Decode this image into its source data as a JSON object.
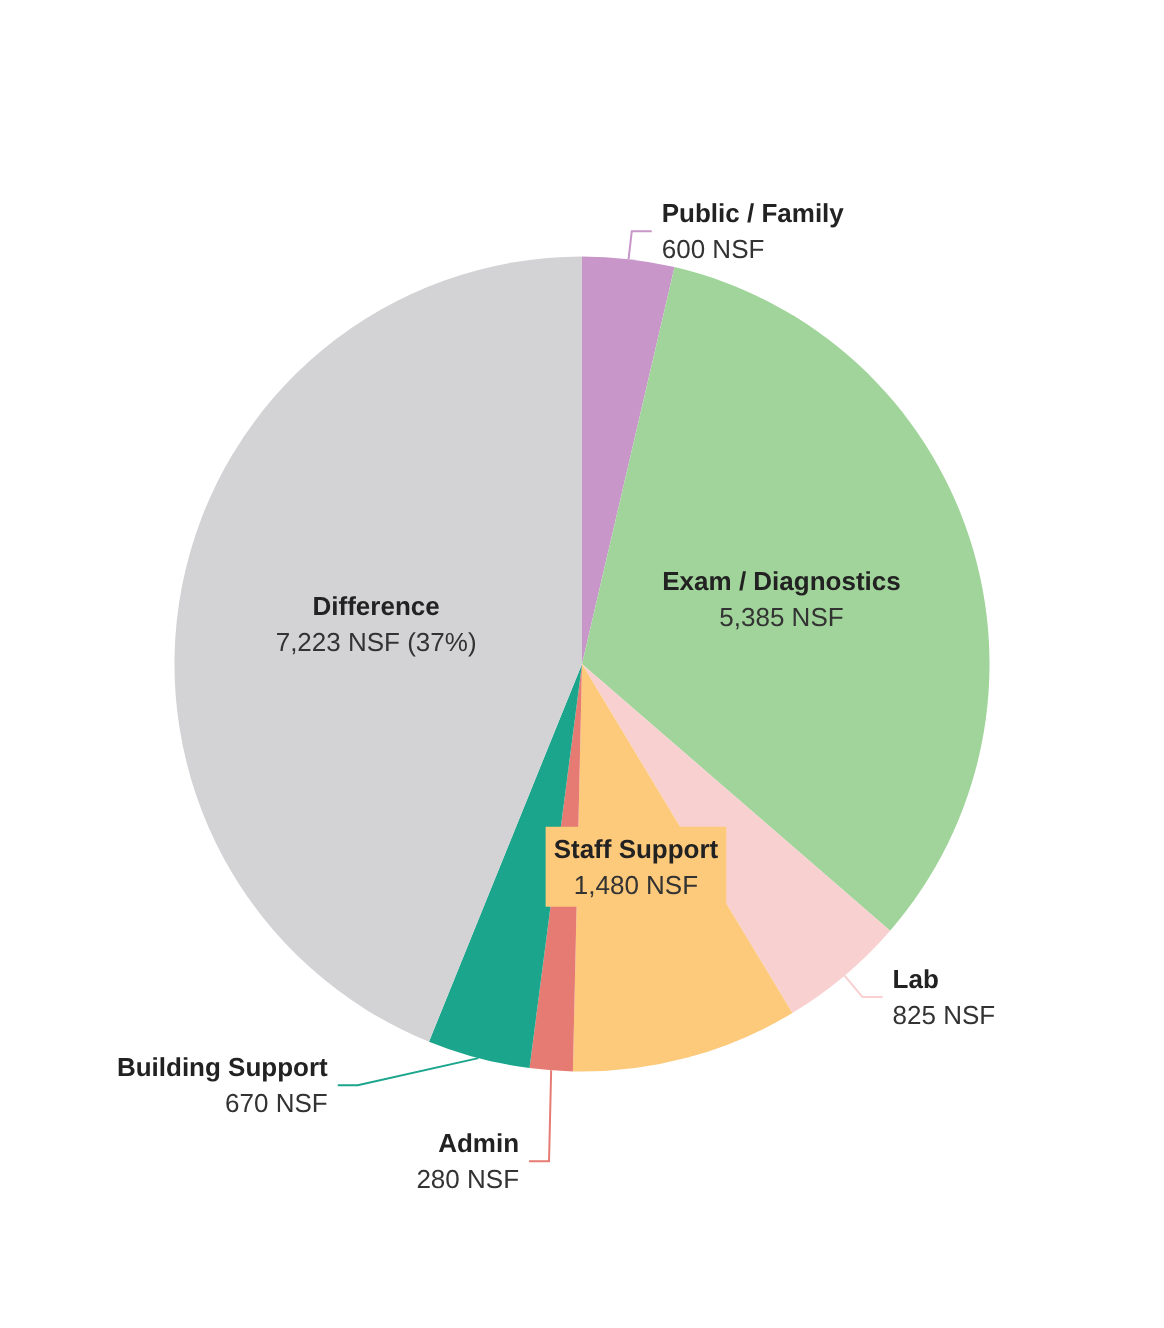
{
  "chart_data": {
    "type": "pie",
    "categories": [
      "Public / Family",
      "Exam / Diagnostics",
      "Lab",
      "Staff Support",
      "Admin",
      "Building Support",
      "Difference"
    ],
    "values": [
      600,
      5385,
      825,
      1480,
      280,
      670,
      7223
    ],
    "colors": [
      "#c896c8",
      "#a0d49a",
      "#f8d0d0",
      "#fdc97a",
      "#e57b72",
      "#1aa58c",
      "#d3d3d5"
    ],
    "value_labels": [
      "600 NSF",
      "5,385 NSF",
      "825 NSF",
      "1,480 NSF",
      "280 NSF",
      "670 NSF",
      "7,223 NSF (37%)"
    ]
  }
}
